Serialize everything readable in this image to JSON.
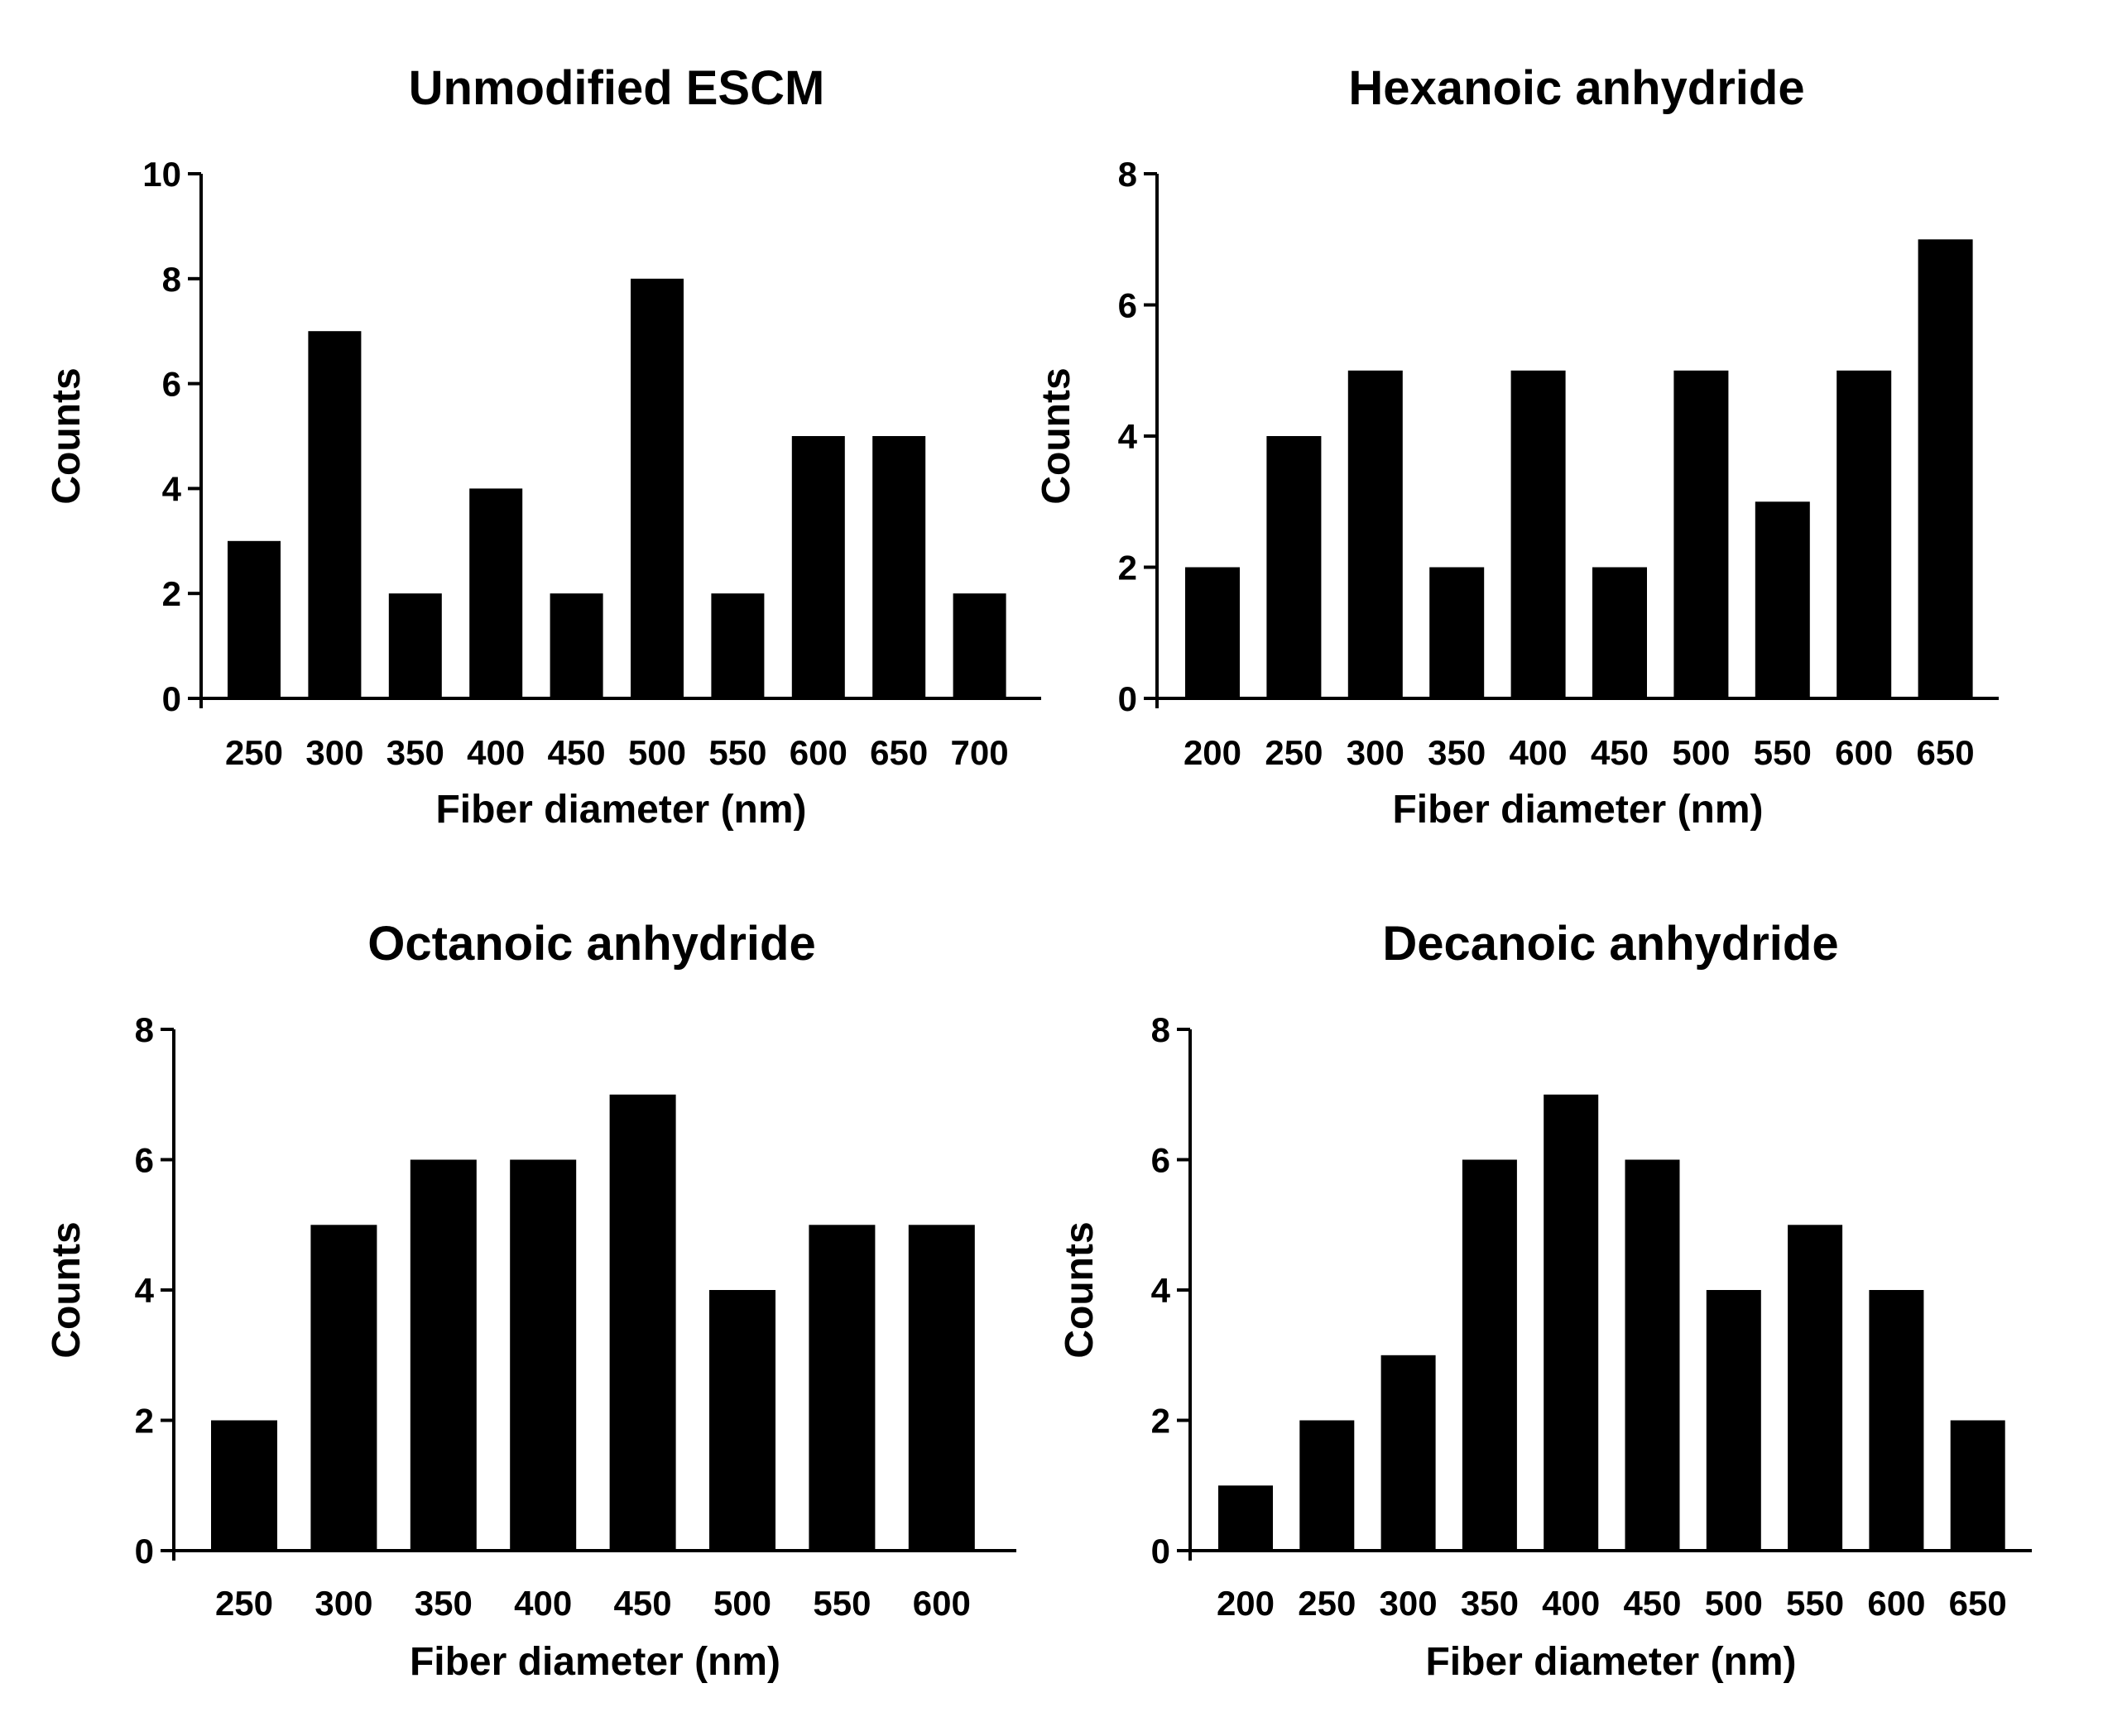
{
  "chart_data": [
    {
      "type": "bar",
      "title": "Unmodified ESCM",
      "xlabel": "Fiber diameter (nm)",
      "ylabel": "Counts",
      "ylim": [
        0,
        10
      ],
      "yticks": [
        "0",
        "2",
        "4",
        "6",
        "8",
        "10"
      ],
      "categories": [
        "250",
        "300",
        "350",
        "400",
        "450",
        "500",
        "550",
        "600",
        "650",
        "700"
      ],
      "values": [
        3,
        7,
        2,
        4,
        2,
        8,
        2,
        5,
        5,
        2
      ]
    },
    {
      "type": "bar",
      "title": "Hexanoic anhydride",
      "xlabel": "Fiber diameter (nm)",
      "ylabel": "Counts",
      "ylim": [
        0,
        8
      ],
      "yticks": [
        "0",
        "2",
        "4",
        "6",
        "8"
      ],
      "categories": [
        "200",
        "250",
        "300",
        "350",
        "400",
        "450",
        "500",
        "550",
        "600",
        "650"
      ],
      "values": [
        2,
        4,
        5,
        2,
        5,
        2,
        5,
        3,
        5,
        7
      ]
    },
    {
      "type": "bar",
      "title": "Octanoic anhydride",
      "xlabel": "Fiber diameter (nm)",
      "ylabel": "Counts",
      "ylim": [
        0,
        8
      ],
      "yticks": [
        "0",
        "2",
        "4",
        "6",
        "8"
      ],
      "categories": [
        "250",
        "300",
        "350",
        "400",
        "450",
        "500",
        "550",
        "600"
      ],
      "values": [
        2,
        5,
        6,
        6,
        7,
        4,
        5,
        5
      ]
    },
    {
      "type": "bar",
      "title": "Decanoic anhydride",
      "xlabel": "Fiber diameter (nm)",
      "ylabel": "Counts",
      "ylim": [
        0,
        8
      ],
      "yticks": [
        "0",
        "2",
        "4",
        "6",
        "8"
      ],
      "categories": [
        "200",
        "250",
        "300",
        "350",
        "400",
        "450",
        "500",
        "550",
        "600",
        "650"
      ],
      "values": [
        1,
        2,
        3,
        6,
        7,
        6,
        4,
        5,
        4,
        2
      ]
    }
  ],
  "colors": {
    "bar": "#000000",
    "axis": "#000000",
    "background": "#ffffff"
  }
}
